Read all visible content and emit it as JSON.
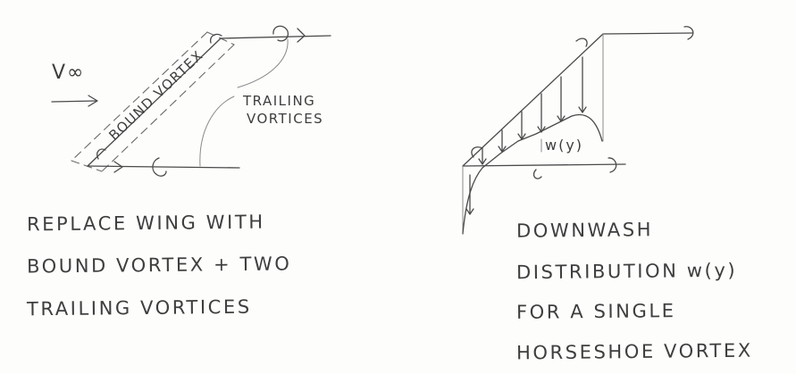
{
  "left_figure": {
    "freestream_label": "V∞",
    "bound_vortex_label": "BOUND VORTEX",
    "trailing_label_line1": "TRAILING",
    "trailing_label_line2": "VORTICES",
    "caption_lines": [
      "REPLACE WING WITH",
      "BOUND VORTEX + TWO",
      "TRAILING VORTICES"
    ]
  },
  "right_figure": {
    "downwash_label": "w(y)",
    "caption_lines": [
      "DOWNWASH",
      "DISTRIBUTION w(y)",
      "FOR A SINGLE",
      "HORSESHOE VORTEX"
    ]
  }
}
